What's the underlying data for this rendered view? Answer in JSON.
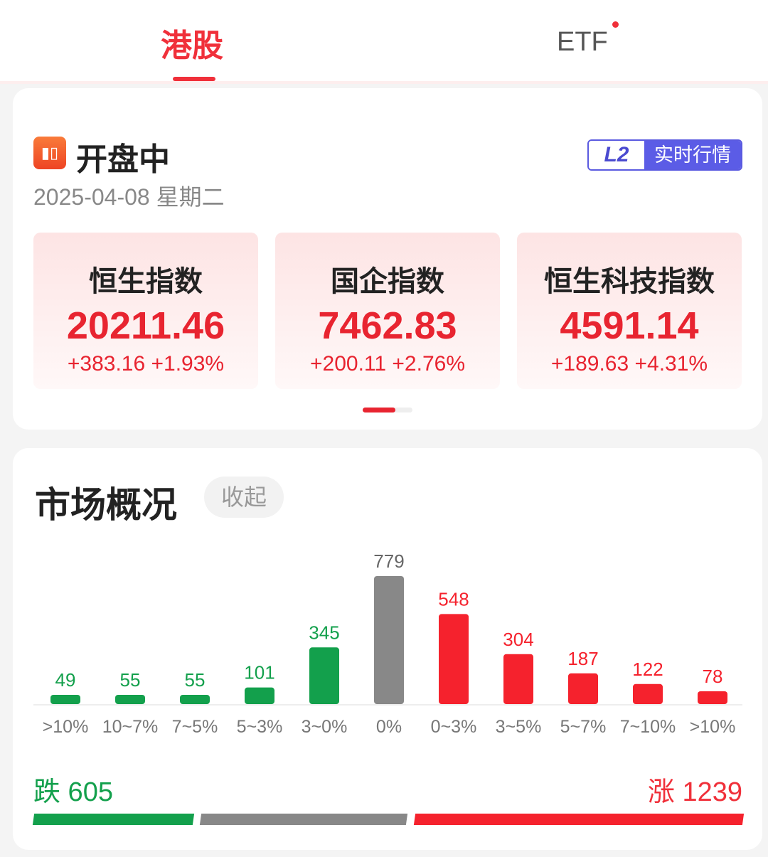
{
  "tabs": [
    {
      "label": "港股",
      "active": true
    },
    {
      "label": "ETF",
      "badge_dot": true
    }
  ],
  "market": {
    "status": "开盘中",
    "date": "2025-04-08 星期二",
    "badge_l2": "L2",
    "badge_text": "实时行情"
  },
  "indices": [
    {
      "name": "恒生指数",
      "value": "20211.46",
      "change": "+383.16",
      "pct": "+1.93%"
    },
    {
      "name": "国企指数",
      "value": "7462.83",
      "change": "+200.11",
      "pct": "+2.76%"
    },
    {
      "name": "恒生科技指数",
      "value": "4591.14",
      "change": "+189.63",
      "pct": "+4.31%"
    }
  ],
  "overview": {
    "title": "市场概况",
    "collapse_label": "收起",
    "fall_label": "跌 605",
    "rise_label": "涨 1239",
    "fall": 605,
    "flat": 779,
    "rise": 1239
  },
  "colors": {
    "up": "#f5222d",
    "down": "#13a04c",
    "flat": "#888888"
  },
  "chart_data": {
    "type": "bar",
    "categories": [
      ">10%",
      "10~7%",
      "7~5%",
      "5~3%",
      "3~0%",
      "0%",
      "0~3%",
      "3~5%",
      "5~7%",
      "7~10%",
      ">10%"
    ],
    "values": [
      49,
      55,
      55,
      101,
      345,
      779,
      548,
      304,
      187,
      122,
      78
    ],
    "groups": [
      "down",
      "down",
      "down",
      "down",
      "down",
      "flat",
      "up",
      "up",
      "up",
      "up",
      "up"
    ]
  }
}
